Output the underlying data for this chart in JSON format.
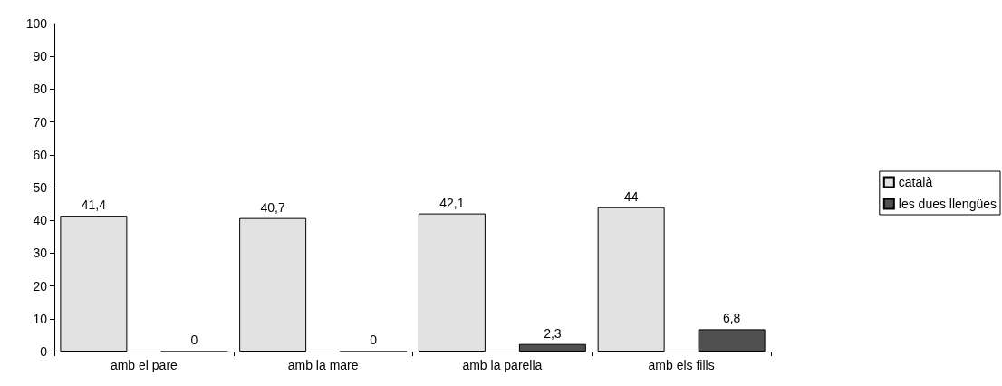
{
  "chart_data": {
    "type": "bar",
    "categories": [
      "amb el pare",
      "amb la mare",
      "amb la parella",
      "amb els fills"
    ],
    "series": [
      {
        "name": "català",
        "color": "#e2e2e2",
        "values": [
          41.4,
          40.7,
          42.1,
          44
        ],
        "value_labels": [
          "41,4",
          "40,7",
          "42,1",
          "44"
        ]
      },
      {
        "name": "les dues llengües",
        "color": "#505050",
        "values": [
          0,
          0,
          2.3,
          6.8
        ],
        "value_labels": [
          "0",
          "0",
          "2,3",
          "6,8"
        ]
      }
    ],
    "ylim": [
      0,
      100
    ],
    "yticks": [
      0,
      10,
      20,
      30,
      40,
      50,
      60,
      70,
      80,
      90,
      100
    ],
    "grid": false,
    "legend": "right"
  }
}
